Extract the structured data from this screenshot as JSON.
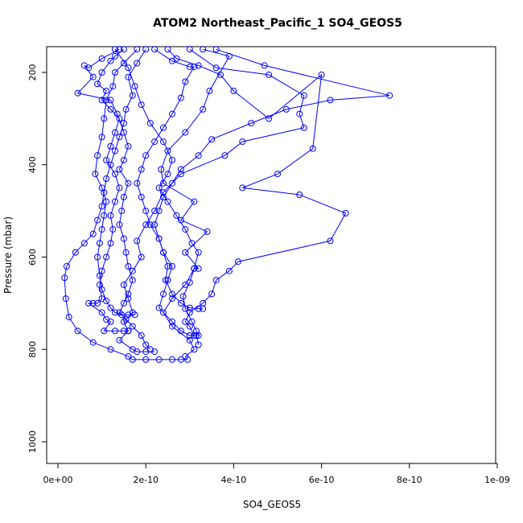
{
  "chart_data": {
    "type": "scatter",
    "title": "ATOM2 Northeast_Pacific_1 SO4_GEOS5",
    "xlabel": "SO4_GEOS5",
    "ylabel": "Pressure (mbar)",
    "xlim": [
      0,
      1e-09
    ],
    "ylim": [
      1040,
      150
    ],
    "x_ticks": [
      0,
      2e-10,
      4e-10,
      6e-10,
      8e-10,
      1e-09
    ],
    "x_tick_labels": [
      "0e+00",
      "2e-10",
      "4e-10",
      "6e-10",
      "8e-10",
      "1e-09"
    ],
    "y_ticks": [
      200,
      400,
      600,
      800,
      1000
    ],
    "y_tick_labels": [
      "200",
      "400",
      "600",
      "800",
      "1000"
    ],
    "grid": false,
    "marker": "open-circle",
    "connected": true,
    "series_color": "#0000ff",
    "series": [
      {
        "values": [
          [
            1.5e-10,
            150
          ],
          [
            1.3e-10,
            165
          ],
          [
            1.2e-10,
            175
          ],
          [
            1e-10,
            200
          ],
          [
            9e-11,
            225
          ],
          [
            1.1e-10,
            240
          ],
          [
            1e-10,
            260
          ],
          [
            1.2e-10,
            280
          ],
          [
            1.4e-10,
            300
          ],
          [
            1.3e-10,
            330
          ],
          [
            1.2e-10,
            360
          ],
          [
            1.1e-10,
            390
          ],
          [
            1.3e-10,
            420
          ],
          [
            1.4e-10,
            450
          ],
          [
            1.3e-10,
            480
          ],
          [
            1.2e-10,
            510
          ],
          [
            1.25e-10,
            540
          ],
          [
            1.2e-10,
            570
          ],
          [
            1.1e-10,
            600
          ],
          [
            1e-10,
            630
          ],
          [
            9.5e-11,
            660
          ],
          [
            1e-10,
            690
          ],
          [
            9e-11,
            700
          ],
          [
            8e-11,
            700
          ],
          [
            7e-11,
            700
          ],
          [
            1e-10,
            720
          ],
          [
            1.1e-10,
            735
          ],
          [
            1.2e-10,
            740
          ],
          [
            1.05e-10,
            760
          ],
          [
            1.3e-10,
            760
          ],
          [
            1.5e-10,
            760
          ],
          [
            1.6e-10,
            760
          ],
          [
            1.4e-10,
            780
          ],
          [
            1.7e-10,
            800
          ],
          [
            1.8e-10,
            805
          ],
          [
            2e-10,
            805
          ],
          [
            2.2e-10,
            805
          ]
        ]
      },
      {
        "values": [
          [
            2e-10,
            150
          ],
          [
            1.8e-10,
            180
          ],
          [
            1.6e-10,
            210
          ],
          [
            1.7e-10,
            250
          ],
          [
            1.55e-10,
            280
          ],
          [
            1.5e-10,
            310
          ],
          [
            1.4e-10,
            340
          ],
          [
            1.3e-10,
            370
          ],
          [
            1.2e-10,
            400
          ],
          [
            1.1e-10,
            430
          ],
          [
            1.05e-10,
            460
          ],
          [
            1e-10,
            490
          ],
          [
            9e-11,
            520
          ],
          [
            8e-11,
            550
          ],
          [
            6e-11,
            570
          ],
          [
            4e-11,
            590
          ],
          [
            2e-11,
            620
          ],
          [
            1.5e-11,
            645
          ],
          [
            1.8e-11,
            690
          ],
          [
            2.5e-11,
            730
          ],
          [
            4.5e-11,
            760
          ],
          [
            8e-11,
            785
          ],
          [
            1.2e-10,
            800
          ],
          [
            1.6e-10,
            815
          ],
          [
            1.7e-10,
            822
          ],
          [
            2e-10,
            822
          ],
          [
            2.3e-10,
            822
          ],
          [
            2.6e-10,
            822
          ],
          [
            2.8e-10,
            822
          ],
          [
            2.95e-10,
            822
          ]
        ]
      },
      {
        "values": [
          [
            3e-10,
            150
          ],
          [
            3.6e-10,
            190
          ],
          [
            4.8e-10,
            205
          ],
          [
            5.6e-10,
            250
          ],
          [
            5.5e-10,
            290
          ],
          [
            5.6e-10,
            320
          ],
          [
            4.2e-10,
            350
          ],
          [
            3.8e-10,
            380
          ],
          [
            2.8e-10,
            420
          ],
          [
            2.4e-10,
            460
          ],
          [
            2.2e-10,
            500
          ],
          [
            2e-10,
            530
          ],
          [
            1.8e-10,
            565
          ],
          [
            1.9e-10,
            600
          ],
          [
            1.7e-10,
            630
          ],
          [
            1.5e-10,
            660
          ],
          [
            1.6e-10,
            690
          ],
          [
            1.7e-10,
            720
          ],
          [
            1.5e-10,
            740
          ],
          [
            1.6e-10,
            760
          ]
        ]
      },
      {
        "values": [
          [
            3.6e-10,
            150
          ],
          [
            4.7e-10,
            185
          ],
          [
            7.55e-10,
            250
          ],
          [
            6.2e-10,
            260
          ],
          [
            5.2e-10,
            280
          ],
          [
            4.4e-10,
            310
          ],
          [
            3.5e-10,
            345
          ],
          [
            3.2e-10,
            380
          ],
          [
            2.8e-10,
            410
          ],
          [
            2.6e-10,
            440
          ],
          [
            2.4e-10,
            470
          ],
          [
            2.3e-10,
            500
          ],
          [
            2.2e-10,
            530
          ],
          [
            2.3e-10,
            560
          ],
          [
            2.4e-10,
            590
          ],
          [
            2.6e-10,
            620
          ],
          [
            2.5e-10,
            650
          ],
          [
            2.4e-10,
            680
          ],
          [
            2.3e-10,
            710
          ],
          [
            2.6e-10,
            740
          ],
          [
            2.8e-10,
            760
          ],
          [
            3e-10,
            770
          ],
          [
            3.15e-10,
            770
          ],
          [
            3.2e-10,
            790
          ]
        ]
      },
      {
        "values": [
          [
            2.5e-10,
            150
          ],
          [
            2.7e-10,
            170
          ],
          [
            3.2e-10,
            185
          ],
          [
            3.7e-10,
            205
          ],
          [
            4e-10,
            240
          ],
          [
            4.8e-10,
            300
          ],
          [
            6e-10,
            205
          ],
          [
            5.8e-10,
            365
          ],
          [
            5e-10,
            420
          ],
          [
            4.2e-10,
            450
          ],
          [
            5.5e-10,
            465
          ],
          [
            6.55e-10,
            505
          ],
          [
            6.2e-10,
            565
          ],
          [
            4.1e-10,
            610
          ],
          [
            3.9e-10,
            630
          ],
          [
            3.6e-10,
            650
          ],
          [
            3.5e-10,
            680
          ],
          [
            3.3e-10,
            700
          ],
          [
            3e-10,
            720
          ],
          [
            2.9e-10,
            740
          ],
          [
            3e-10,
            750
          ],
          [
            3.1e-10,
            770
          ]
        ]
      },
      {
        "values": [
          [
            1.4e-10,
            150
          ],
          [
            1e-10,
            170
          ],
          [
            7e-11,
            190
          ],
          [
            6e-11,
            185
          ],
          [
            8e-11,
            210
          ],
          [
            4.5e-11,
            245
          ],
          [
            1.2e-10,
            260
          ],
          [
            1.35e-10,
            290
          ],
          [
            1.5e-10,
            330
          ],
          [
            1.6e-10,
            360
          ],
          [
            1.5e-10,
            390
          ],
          [
            1.4e-10,
            410
          ],
          [
            1.6e-10,
            440
          ],
          [
            1.5e-10,
            470
          ],
          [
            1.45e-10,
            500
          ],
          [
            1.4e-10,
            530
          ],
          [
            1.5e-10,
            560
          ],
          [
            1.55e-10,
            590
          ],
          [
            1.6e-10,
            620
          ],
          [
            1.7e-10,
            650
          ],
          [
            1.6e-10,
            680
          ],
          [
            1.5e-10,
            700
          ],
          [
            1.4e-10,
            720
          ],
          [
            1.55e-10,
            735
          ],
          [
            1.7e-10,
            750
          ],
          [
            1.9e-10,
            770
          ],
          [
            2e-10,
            790
          ],
          [
            2.1e-10,
            800
          ]
        ]
      },
      {
        "values": [
          [
            2.2e-10,
            150
          ],
          [
            2.6e-10,
            175
          ],
          [
            3e-10,
            188
          ],
          [
            3.1e-10,
            188
          ],
          [
            2.9e-10,
            220
          ],
          [
            2.8e-10,
            255
          ],
          [
            2.6e-10,
            290
          ],
          [
            2.4e-10,
            320
          ],
          [
            2.2e-10,
            350
          ],
          [
            2e-10,
            380
          ],
          [
            1.9e-10,
            410
          ],
          [
            1.8e-10,
            440
          ],
          [
            1.9e-10,
            470
          ],
          [
            2e-10,
            500
          ],
          [
            2.1e-10,
            530
          ],
          [
            2.3e-10,
            560
          ],
          [
            2.4e-10,
            590
          ],
          [
            2.5e-10,
            620
          ],
          [
            2.45e-10,
            650
          ],
          [
            2.6e-10,
            680
          ],
          [
            2.8e-10,
            700
          ],
          [
            3e-10,
            710
          ],
          [
            3.2e-10,
            712
          ],
          [
            3.3e-10,
            712
          ]
        ]
      },
      {
        "values": [
          [
            1.8e-10,
            150
          ],
          [
            1.5e-10,
            180
          ],
          [
            1.3e-10,
            200
          ],
          [
            1.25e-10,
            230
          ],
          [
            1.1e-10,
            260
          ],
          [
            1.05e-10,
            300
          ],
          [
            1e-10,
            340
          ],
          [
            9e-11,
            380
          ],
          [
            8.5e-11,
            420
          ],
          [
            1e-10,
            450
          ],
          [
            1.1e-10,
            480
          ],
          [
            1.05e-10,
            510
          ],
          [
            1e-10,
            540
          ],
          [
            9.5e-11,
            570
          ],
          [
            9e-11,
            600
          ],
          [
            9.5e-11,
            640
          ],
          [
            1e-10,
            670
          ],
          [
            1.1e-10,
            695
          ],
          [
            1.2e-10,
            710
          ],
          [
            1.3e-10,
            720
          ],
          [
            1.45e-10,
            725
          ],
          [
            1.6e-10,
            725
          ],
          [
            1.75e-10,
            725
          ]
        ]
      },
      {
        "values": [
          [
            3.3e-10,
            150
          ],
          [
            3.9e-10,
            165
          ],
          [
            3.45e-10,
            240
          ],
          [
            3.3e-10,
            280
          ],
          [
            2.9e-10,
            330
          ],
          [
            2.5e-10,
            370
          ],
          [
            2.35e-10,
            410
          ],
          [
            2.4e-10,
            440
          ],
          [
            3.1e-10,
            480
          ],
          [
            2.8e-10,
            520
          ],
          [
            3.4e-10,
            545
          ],
          [
            2.9e-10,
            590
          ],
          [
            3.2e-10,
            625
          ],
          [
            3.1e-10,
            625
          ],
          [
            2.9e-10,
            660
          ],
          [
            2.6e-10,
            690
          ],
          [
            2.4e-10,
            720
          ],
          [
            2.6e-10,
            750
          ],
          [
            3e-10,
            780
          ],
          [
            3.1e-10,
            800
          ],
          [
            2.9e-10,
            815
          ]
        ]
      },
      {
        "values": [
          [
            1.3e-10,
            150
          ],
          [
            1.6e-10,
            190
          ],
          [
            1.75e-10,
            230
          ],
          [
            1.9e-10,
            270
          ],
          [
            2.1e-10,
            310
          ],
          [
            2.4e-10,
            350
          ],
          [
            2.6e-10,
            390
          ],
          [
            2.5e-10,
            420
          ],
          [
            2.3e-10,
            450
          ],
          [
            2.5e-10,
            480
          ],
          [
            2.7e-10,
            510
          ],
          [
            2.9e-10,
            540
          ],
          [
            3.05e-10,
            570
          ],
          [
            3.2e-10,
            590
          ],
          [
            3.1e-10,
            625
          ],
          [
            3e-10,
            655
          ],
          [
            2.85e-10,
            685
          ],
          [
            2.9e-10,
            712
          ],
          [
            3.05e-10,
            740
          ],
          [
            3.15e-10,
            760
          ],
          [
            3.2e-10,
            770
          ]
        ]
      }
    ]
  }
}
